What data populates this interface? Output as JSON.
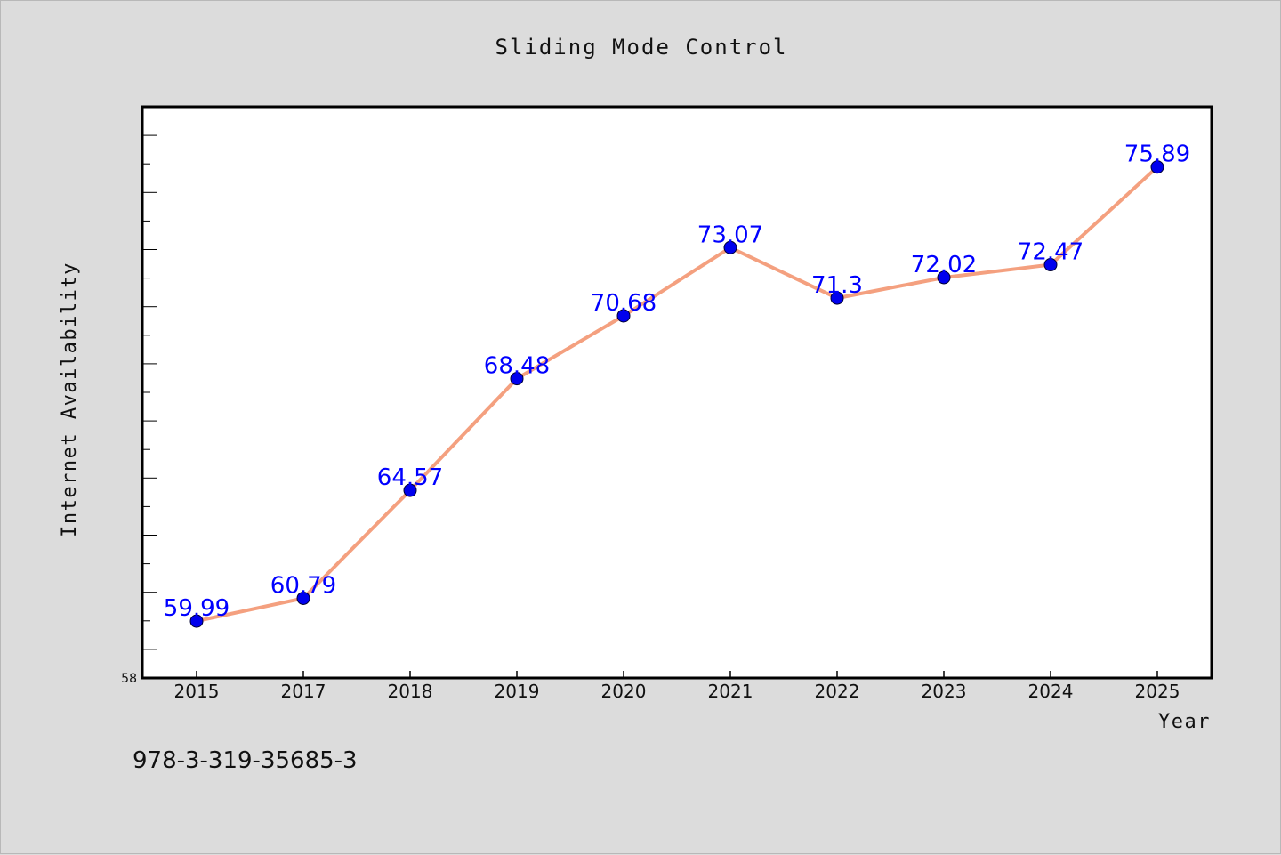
{
  "chart_data": {
    "type": "line",
    "title": "Sliding Mode Control",
    "xlabel": "Year",
    "ylabel": "Internet Availability",
    "categories": [
      "2015",
      "2017",
      "2018",
      "2019",
      "2020",
      "2021",
      "2022",
      "2023",
      "2024",
      "2025"
    ],
    "series": [
      {
        "values": [
          59.99,
          60.79,
          64.57,
          68.48,
          70.68,
          73.07,
          71.3,
          72.02,
          72.47,
          75.89
        ],
        "labels": [
          "59.99",
          "60.79",
          "64.57",
          "68.48",
          "70.68",
          "73.07",
          "71.3",
          "72.02",
          "72.47",
          "75.89"
        ],
        "line_color": "#f4a07f",
        "marker_color": "#0000ee"
      }
    ],
    "ylim": [
      58,
      78
    ],
    "y_tick_labels": [
      "58"
    ],
    "grid": false,
    "label_color": "#0000ff"
  },
  "footer_text": "978-3-319-35685-3"
}
